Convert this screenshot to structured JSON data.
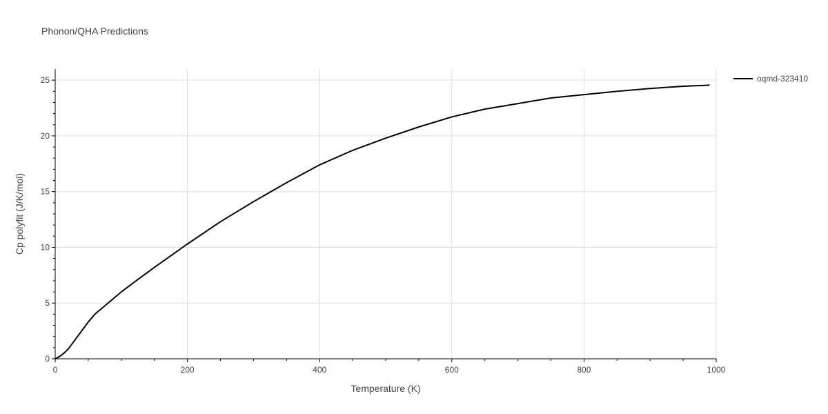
{
  "chart_data": {
    "type": "line",
    "title": "Phonon/QHA Predictions",
    "xlabel": "Temperature (K)",
    "ylabel": "Cp polyfit (J/K/mol)",
    "xlim": [
      0,
      1000
    ],
    "ylim": [
      0,
      26
    ],
    "xticks": [
      0,
      200,
      400,
      600,
      800,
      1000
    ],
    "yticks": [
      0,
      5,
      10,
      15,
      20,
      25
    ],
    "grid": true,
    "legend_position": "right",
    "series": [
      {
        "name": "oqmd-323410",
        "color": "#000000",
        "x": [
          0,
          5,
          10,
          15,
          20,
          30,
          40,
          50,
          60,
          80,
          100,
          120,
          150,
          200,
          250,
          300,
          350,
          400,
          450,
          500,
          550,
          600,
          650,
          700,
          750,
          800,
          850,
          900,
          950,
          990
        ],
        "y": [
          0,
          0.15,
          0.35,
          0.6,
          0.9,
          1.7,
          2.5,
          3.3,
          4.0,
          5.0,
          6.0,
          6.9,
          8.2,
          10.3,
          12.3,
          14.1,
          15.8,
          17.4,
          18.7,
          19.8,
          20.8,
          21.7,
          22.4,
          22.9,
          23.4,
          23.7,
          24.0,
          24.25,
          24.45,
          24.55
        ]
      }
    ]
  }
}
